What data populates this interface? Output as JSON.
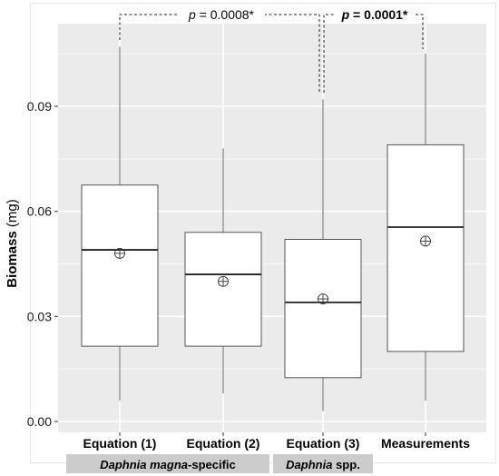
{
  "chart_data": {
    "type": "boxplot",
    "title": "",
    "xlabel": "",
    "ylabel": "Biomass (mg)",
    "ylim": [
      -0.001,
      0.112
    ],
    "yticks": [
      0.0,
      0.03,
      0.06,
      0.09
    ],
    "ytick_labels": [
      "0.00",
      "0.03",
      "0.06",
      "0.09"
    ],
    "grid": true,
    "panel_background": "#ebebeb",
    "categories": [
      "Equation (1)",
      "Equation (2)",
      "Equation (3)",
      "Measurements"
    ],
    "boxes": [
      {
        "category": "Equation (1)",
        "whisker_low": 0.006,
        "q1": 0.0215,
        "median": 0.049,
        "q3": 0.0675,
        "whisker_high": 0.107,
        "mean": 0.048
      },
      {
        "category": "Equation (2)",
        "whisker_low": 0.008,
        "q1": 0.0215,
        "median": 0.042,
        "q3": 0.054,
        "whisker_high": 0.078,
        "mean": 0.04
      },
      {
        "category": "Equation (3)",
        "whisker_low": 0.003,
        "q1": 0.0125,
        "median": 0.034,
        "q3": 0.052,
        "whisker_high": 0.092,
        "mean": 0.035
      },
      {
        "category": "Measurements",
        "whisker_low": 0.006,
        "q1": 0.02,
        "median": 0.0555,
        "q3": 0.079,
        "whisker_high": 0.105,
        "mean": 0.0515
      }
    ],
    "comparisons": [
      {
        "from": "Equation (1)",
        "to": "Equation (3)",
        "label_prefix": "p",
        "label_value": " = 0.0008*",
        "bold": false
      },
      {
        "from": "Equation (3)",
        "to": "Measurements",
        "label_prefix": "p",
        "label_value": " = 0.0001*",
        "bold": true
      }
    ],
    "groups": [
      {
        "categories": [
          "Equation (1)",
          "Equation (2)"
        ],
        "label_italic": "Daphnia magna",
        "label_plain": "-specific"
      },
      {
        "categories": [
          "Equation (3)"
        ],
        "label_italic": "Daphnia",
        "label_plain": " spp."
      }
    ]
  }
}
